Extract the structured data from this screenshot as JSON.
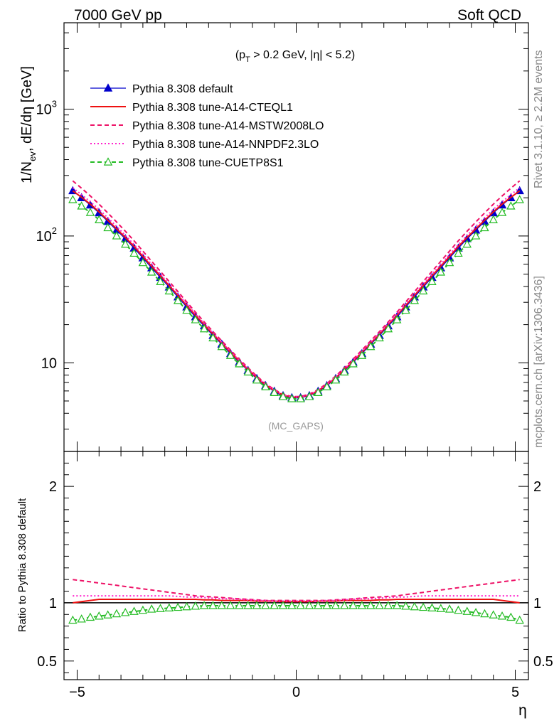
{
  "header": {
    "left": "7000 GeV pp",
    "right": "Soft QCD"
  },
  "side": {
    "rivet": "Rivet 3.1.10, ≥ 2.2M events",
    "mcplots": "mcplots.cern.ch [arXiv:1306.3436]"
  },
  "chart_data": [
    {
      "type": "line",
      "subtitle": "(p_T > 0.2 GeV, |η| < 5.2)",
      "watermark": "(MC_GAPS)",
      "ylabel": "1/N_ev, dE/dη [GeV]",
      "xlabel": "η",
      "xlim": [
        -5.3,
        5.3
      ],
      "ylim": [
        2.0,
        4800
      ],
      "yscale": "log",
      "yticks": [
        {
          "value": 1000,
          "base": "10",
          "exp": "3"
        },
        {
          "value": 100,
          "base": "10",
          "exp": "2"
        },
        {
          "value": 10,
          "base": "10",
          "exp": ""
        }
      ],
      "xticks": [
        {
          "value": -5,
          "label": "−5"
        },
        {
          "value": 0,
          "label": "0"
        },
        {
          "value": 5,
          "label": "5"
        }
      ],
      "legend_position": "top-left",
      "x": [
        -5.1,
        -4.9,
        -4.7,
        -4.5,
        -4.3,
        -4.1,
        -3.9,
        -3.7,
        -3.5,
        -3.3,
        -3.1,
        -2.9,
        -2.7,
        -2.5,
        -2.3,
        -2.1,
        -1.9,
        -1.7,
        -1.5,
        -1.3,
        -1.1,
        -0.9,
        -0.7,
        -0.5,
        -0.3,
        -0.1,
        0.1,
        0.3,
        0.5,
        0.7,
        0.9,
        1.1,
        1.3,
        1.5,
        1.7,
        1.9,
        2.1,
        2.3,
        2.5,
        2.7,
        2.9,
        3.1,
        3.3,
        3.5,
        3.7,
        3.9,
        4.1,
        4.3,
        4.5,
        4.7,
        4.9,
        5.1
      ],
      "series": [
        {
          "name": "Pythia 8.308 default",
          "color": "#0000cc",
          "style": "solid-triangle",
          "values": [
            227,
            200,
            175,
            152,
            130,
            111,
            95,
            80,
            67,
            56,
            47,
            39.5,
            33,
            27.5,
            23,
            19.5,
            16.4,
            14,
            11.8,
            10.1,
            8.7,
            7.5,
            6.6,
            5.95,
            5.5,
            5.3,
            5.3,
            5.5,
            5.95,
            6.6,
            7.5,
            8.7,
            10.1,
            11.8,
            14,
            16.4,
            19.5,
            23,
            27.5,
            33,
            39.5,
            47,
            56,
            67,
            80,
            95,
            111,
            130,
            152,
            175,
            200,
            227
          ]
        },
        {
          "name": "Pythia 8.308 tune-A14-CTEQL1",
          "color": "#ee1111",
          "style": "solid",
          "values": [
            227,
            202,
            178,
            155,
            133,
            114,
            97.5,
            82.5,
            69,
            57.8,
            48.5,
            40.7,
            34,
            28.4,
            23.7,
            20,
            16.8,
            14.3,
            12.1,
            10.3,
            8.85,
            7.62,
            6.7,
            6.03,
            5.57,
            5.36,
            5.36,
            5.57,
            6.03,
            6.7,
            7.62,
            8.85,
            10.3,
            12.1,
            14.3,
            16.8,
            20,
            23.7,
            28.4,
            34,
            40.7,
            48.5,
            57.8,
            69,
            82.5,
            97.5,
            114,
            133,
            155,
            178,
            202,
            227
          ]
        },
        {
          "name": "Pythia 8.308 tune-A14-MSTW2008LO",
          "color": "#ee1166",
          "style": "dashed",
          "values": [
            272,
            238,
            207,
            178,
            152,
            129,
            109,
            91.5,
            76,
            63.2,
            52.6,
            43.8,
            36.4,
            30.2,
            25.1,
            21,
            17.6,
            14.9,
            12.6,
            10.7,
            9.15,
            7.85,
            6.87,
            6.15,
            5.66,
            5.42,
            5.42,
            5.66,
            6.15,
            6.87,
            7.85,
            9.15,
            10.7,
            12.6,
            14.9,
            17.6,
            21,
            25.1,
            30.2,
            36.4,
            43.8,
            52.6,
            63.2,
            76,
            91.5,
            109,
            129,
            152,
            178,
            207,
            238,
            272
          ]
        },
        {
          "name": "Pythia 8.308 tune-A14-NNPDF2.3LO",
          "color": "#ff22cc",
          "style": "dotted",
          "values": [
            240,
            212,
            186,
            162,
            139,
            119,
            101,
            85.5,
            71.5,
            59.8,
            50,
            41.8,
            34.9,
            29.1,
            24.3,
            20.4,
            17.1,
            14.5,
            12.3,
            10.45,
            8.95,
            7.7,
            6.75,
            6.06,
            5.59,
            5.37,
            5.37,
            5.59,
            6.06,
            6.75,
            7.7,
            8.95,
            10.45,
            12.3,
            14.5,
            17.1,
            20.4,
            24.3,
            29.1,
            34.9,
            41.8,
            50,
            59.8,
            71.5,
            85.5,
            101,
            119,
            139,
            162,
            186,
            212,
            240
          ]
        },
        {
          "name": "Pythia 8.308 tune-CUETP8S1",
          "color": "#22bb22",
          "style": "dashed-open-triangle",
          "values": [
            193,
            172,
            153,
            134,
            116,
            100,
            86,
            73,
            61.5,
            51.8,
            43.6,
            36.8,
            30.9,
            25.9,
            21.8,
            18.5,
            15.7,
            13.4,
            11.4,
            9.8,
            8.45,
            7.3,
            6.45,
            5.82,
            5.4,
            5.2,
            5.2,
            5.4,
            5.82,
            6.45,
            7.3,
            8.45,
            9.8,
            11.4,
            13.4,
            15.7,
            18.5,
            21.8,
            25.9,
            30.9,
            36.8,
            43.6,
            51.8,
            61.5,
            73,
            86,
            100,
            116,
            134,
            153,
            172,
            193
          ]
        }
      ]
    },
    {
      "type": "line",
      "ylabel": "Ratio to Pythia 8.308 default",
      "xlabel": "η",
      "xlim": [
        -5.3,
        5.3
      ],
      "ylim": [
        0.34,
        2.3
      ],
      "yticks": [
        {
          "value": 2,
          "label": "2"
        },
        {
          "value": 1,
          "label": "1"
        },
        {
          "value": 0.5,
          "label": "0.5"
        }
      ],
      "xticks": [
        {
          "value": -5,
          "label": "−5"
        },
        {
          "value": 0,
          "label": "0"
        },
        {
          "value": 5,
          "label": "5"
        }
      ],
      "x": [
        -5.1,
        -4.9,
        -4.7,
        -4.5,
        -4.3,
        -4.1,
        -3.9,
        -3.7,
        -3.5,
        -3.3,
        -3.1,
        -2.9,
        -2.7,
        -2.5,
        -2.3,
        -2.1,
        -1.9,
        -1.7,
        -1.5,
        -1.3,
        -1.1,
        -0.9,
        -0.7,
        -0.5,
        -0.3,
        -0.1,
        0.1,
        0.3,
        0.5,
        0.7,
        0.9,
        1.1,
        1.3,
        1.5,
        1.7,
        1.9,
        2.1,
        2.3,
        2.5,
        2.7,
        2.9,
        3.1,
        3.3,
        3.5,
        3.7,
        3.9,
        4.1,
        4.3,
        4.5,
        4.7,
        4.9,
        5.1
      ],
      "series": [
        {
          "name": "Pythia 8.308 tune-A14-CTEQL1",
          "color": "#ee1111",
          "style": "solid",
          "values": [
            1.0,
            1.01,
            1.02,
            1.03,
            1.03,
            1.03,
            1.03,
            1.03,
            1.03,
            1.03,
            1.03,
            1.03,
            1.03,
            1.03,
            1.03,
            1.025,
            1.025,
            1.02,
            1.02,
            1.02,
            1.02,
            1.015,
            1.015,
            1.015,
            1.01,
            1.01,
            1.01,
            1.01,
            1.015,
            1.015,
            1.015,
            1.02,
            1.02,
            1.02,
            1.02,
            1.025,
            1.025,
            1.03,
            1.03,
            1.03,
            1.03,
            1.03,
            1.03,
            1.03,
            1.03,
            1.03,
            1.03,
            1.03,
            1.03,
            1.02,
            1.01,
            1.0
          ]
        },
        {
          "name": "Pythia 8.308 tune-A14-MSTW2008LO",
          "color": "#ee1166",
          "style": "dashed",
          "values": [
            1.2,
            1.19,
            1.18,
            1.17,
            1.16,
            1.15,
            1.14,
            1.13,
            1.12,
            1.11,
            1.1,
            1.09,
            1.08,
            1.07,
            1.06,
            1.055,
            1.05,
            1.045,
            1.04,
            1.035,
            1.03,
            1.025,
            1.02,
            1.02,
            1.02,
            1.02,
            1.02,
            1.02,
            1.02,
            1.02,
            1.025,
            1.03,
            1.035,
            1.04,
            1.045,
            1.05,
            1.055,
            1.06,
            1.07,
            1.08,
            1.09,
            1.1,
            1.11,
            1.12,
            1.13,
            1.14,
            1.15,
            1.16,
            1.17,
            1.18,
            1.19,
            1.2
          ]
        },
        {
          "name": "Pythia 8.308 tune-A14-NNPDF2.3LO",
          "color": "#ff22cc",
          "style": "dotted",
          "values": [
            1.06,
            1.06,
            1.06,
            1.06,
            1.06,
            1.06,
            1.06,
            1.06,
            1.06,
            1.06,
            1.06,
            1.06,
            1.055,
            1.05,
            1.05,
            1.045,
            1.04,
            1.035,
            1.035,
            1.03,
            1.025,
            1.02,
            1.02,
            1.015,
            1.015,
            1.015,
            1.015,
            1.015,
            1.015,
            1.02,
            1.02,
            1.025,
            1.03,
            1.035,
            1.035,
            1.04,
            1.045,
            1.05,
            1.05,
            1.055,
            1.06,
            1.06,
            1.06,
            1.06,
            1.06,
            1.06,
            1.06,
            1.06,
            1.06,
            1.06,
            1.06,
            1.06
          ]
        },
        {
          "name": "Pythia 8.308 tune-CUETP8S1",
          "color": "#22bb22",
          "style": "dashed-open-triangle",
          "values": [
            0.85,
            0.86,
            0.875,
            0.885,
            0.895,
            0.905,
            0.915,
            0.925,
            0.935,
            0.945,
            0.95,
            0.955,
            0.96,
            0.965,
            0.97,
            0.975,
            0.975,
            0.975,
            0.975,
            0.975,
            0.975,
            0.975,
            0.975,
            0.975,
            0.975,
            0.975,
            0.975,
            0.975,
            0.975,
            0.975,
            0.975,
            0.975,
            0.975,
            0.975,
            0.975,
            0.975,
            0.975,
            0.975,
            0.97,
            0.965,
            0.96,
            0.955,
            0.95,
            0.945,
            0.935,
            0.925,
            0.915,
            0.905,
            0.895,
            0.885,
            0.875,
            0.85
          ]
        }
      ]
    }
  ]
}
